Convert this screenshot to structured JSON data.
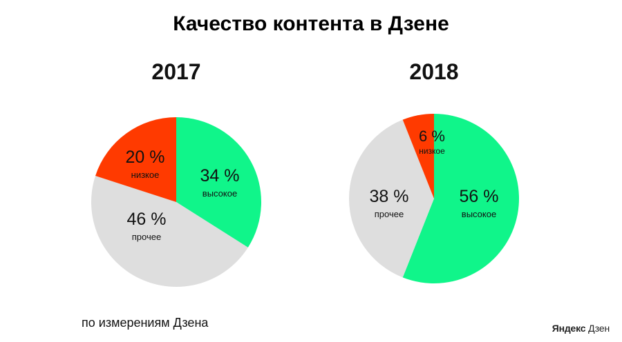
{
  "title": "Качество контента в Дзене",
  "footnote": "по измерениям Дзена",
  "logo": {
    "brand": "Яндекс",
    "product": "Дзен"
  },
  "colors": {
    "high": "#10f58a",
    "low": "#ff3a00",
    "other": "#dedede"
  },
  "chart_data": [
    {
      "type": "pie",
      "title": "2017",
      "slices": [
        {
          "label": "высокое",
          "value": 34,
          "display": "34 %",
          "color": "#10f58a"
        },
        {
          "label": "прочее",
          "value": 46,
          "display": "46 %",
          "color": "#dedede"
        },
        {
          "label": "низкое",
          "value": 20,
          "display": "20 %",
          "color": "#ff3a00"
        }
      ]
    },
    {
      "type": "pie",
      "title": "2018",
      "slices": [
        {
          "label": "высокое",
          "value": 56,
          "display": "56 %",
          "color": "#10f58a"
        },
        {
          "label": "прочее",
          "value": 38,
          "display": "38 %",
          "color": "#dedede"
        },
        {
          "label": "низкое",
          "value": 6,
          "display": "6 %",
          "color": "#ff3a00"
        }
      ]
    }
  ]
}
